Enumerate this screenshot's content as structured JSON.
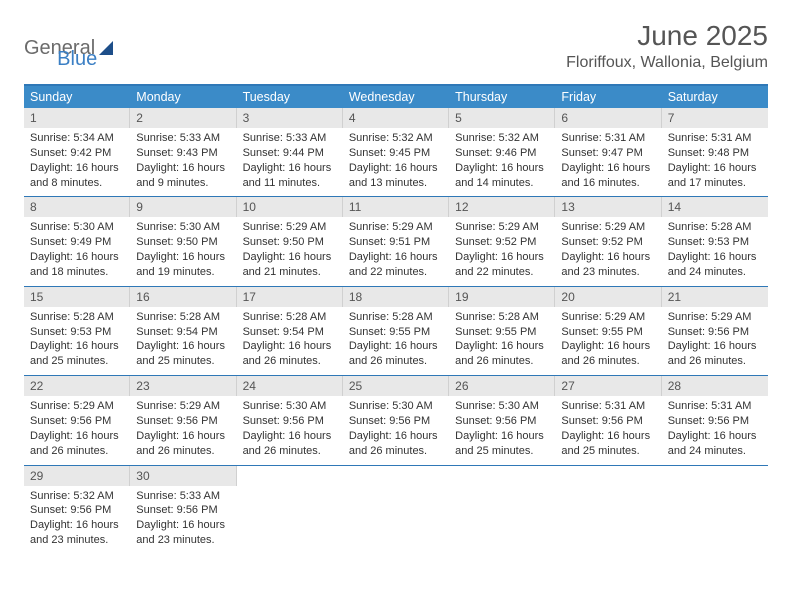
{
  "logo": {
    "word1": "General",
    "word2": "Blue"
  },
  "month_title": "June 2025",
  "location": "Floriffoux, Wallonia, Belgium",
  "colors": {
    "header_bar": "#3b8bc8",
    "accent_line": "#2f78b7",
    "daynum_bg": "#e8e8e8",
    "text": "#333333",
    "logo_gray": "#6b6b6b",
    "logo_blue": "#3b7fc4",
    "logo_tri": "#1d4e89"
  },
  "weekdays": [
    "Sunday",
    "Monday",
    "Tuesday",
    "Wednesday",
    "Thursday",
    "Friday",
    "Saturday"
  ],
  "weeks": [
    [
      {
        "n": "1",
        "sr": "5:34 AM",
        "ss": "9:42 PM",
        "dl": "16 hours and 8 minutes."
      },
      {
        "n": "2",
        "sr": "5:33 AM",
        "ss": "9:43 PM",
        "dl": "16 hours and 9 minutes."
      },
      {
        "n": "3",
        "sr": "5:33 AM",
        "ss": "9:44 PM",
        "dl": "16 hours and 11 minutes."
      },
      {
        "n": "4",
        "sr": "5:32 AM",
        "ss": "9:45 PM",
        "dl": "16 hours and 13 minutes."
      },
      {
        "n": "5",
        "sr": "5:32 AM",
        "ss": "9:46 PM",
        "dl": "16 hours and 14 minutes."
      },
      {
        "n": "6",
        "sr": "5:31 AM",
        "ss": "9:47 PM",
        "dl": "16 hours and 16 minutes."
      },
      {
        "n": "7",
        "sr": "5:31 AM",
        "ss": "9:48 PM",
        "dl": "16 hours and 17 minutes."
      }
    ],
    [
      {
        "n": "8",
        "sr": "5:30 AM",
        "ss": "9:49 PM",
        "dl": "16 hours and 18 minutes."
      },
      {
        "n": "9",
        "sr": "5:30 AM",
        "ss": "9:50 PM",
        "dl": "16 hours and 19 minutes."
      },
      {
        "n": "10",
        "sr": "5:29 AM",
        "ss": "9:50 PM",
        "dl": "16 hours and 21 minutes."
      },
      {
        "n": "11",
        "sr": "5:29 AM",
        "ss": "9:51 PM",
        "dl": "16 hours and 22 minutes."
      },
      {
        "n": "12",
        "sr": "5:29 AM",
        "ss": "9:52 PM",
        "dl": "16 hours and 22 minutes."
      },
      {
        "n": "13",
        "sr": "5:29 AM",
        "ss": "9:52 PM",
        "dl": "16 hours and 23 minutes."
      },
      {
        "n": "14",
        "sr": "5:28 AM",
        "ss": "9:53 PM",
        "dl": "16 hours and 24 minutes."
      }
    ],
    [
      {
        "n": "15",
        "sr": "5:28 AM",
        "ss": "9:53 PM",
        "dl": "16 hours and 25 minutes."
      },
      {
        "n": "16",
        "sr": "5:28 AM",
        "ss": "9:54 PM",
        "dl": "16 hours and 25 minutes."
      },
      {
        "n": "17",
        "sr": "5:28 AM",
        "ss": "9:54 PM",
        "dl": "16 hours and 26 minutes."
      },
      {
        "n": "18",
        "sr": "5:28 AM",
        "ss": "9:55 PM",
        "dl": "16 hours and 26 minutes."
      },
      {
        "n": "19",
        "sr": "5:28 AM",
        "ss": "9:55 PM",
        "dl": "16 hours and 26 minutes."
      },
      {
        "n": "20",
        "sr": "5:29 AM",
        "ss": "9:55 PM",
        "dl": "16 hours and 26 minutes."
      },
      {
        "n": "21",
        "sr": "5:29 AM",
        "ss": "9:56 PM",
        "dl": "16 hours and 26 minutes."
      }
    ],
    [
      {
        "n": "22",
        "sr": "5:29 AM",
        "ss": "9:56 PM",
        "dl": "16 hours and 26 minutes."
      },
      {
        "n": "23",
        "sr": "5:29 AM",
        "ss": "9:56 PM",
        "dl": "16 hours and 26 minutes."
      },
      {
        "n": "24",
        "sr": "5:30 AM",
        "ss": "9:56 PM",
        "dl": "16 hours and 26 minutes."
      },
      {
        "n": "25",
        "sr": "5:30 AM",
        "ss": "9:56 PM",
        "dl": "16 hours and 26 minutes."
      },
      {
        "n": "26",
        "sr": "5:30 AM",
        "ss": "9:56 PM",
        "dl": "16 hours and 25 minutes."
      },
      {
        "n": "27",
        "sr": "5:31 AM",
        "ss": "9:56 PM",
        "dl": "16 hours and 25 minutes."
      },
      {
        "n": "28",
        "sr": "5:31 AM",
        "ss": "9:56 PM",
        "dl": "16 hours and 24 minutes."
      }
    ],
    [
      {
        "n": "29",
        "sr": "5:32 AM",
        "ss": "9:56 PM",
        "dl": "16 hours and 23 minutes."
      },
      {
        "n": "30",
        "sr": "5:33 AM",
        "ss": "9:56 PM",
        "dl": "16 hours and 23 minutes."
      },
      null,
      null,
      null,
      null,
      null
    ]
  ],
  "labels": {
    "sunrise": "Sunrise:",
    "sunset": "Sunset:",
    "daylight": "Daylight:"
  }
}
